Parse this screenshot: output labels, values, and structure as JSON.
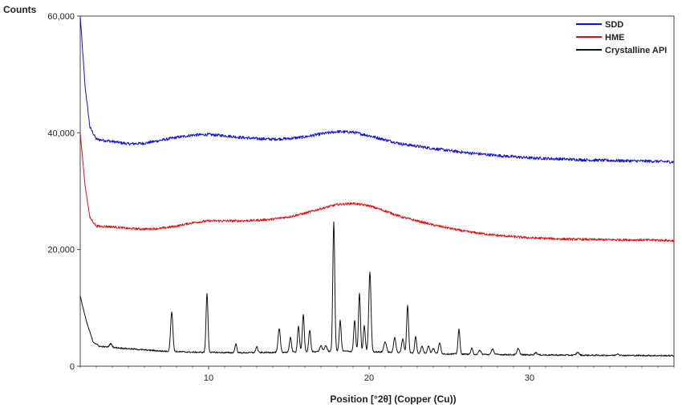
{
  "chart_data": {
    "type": "line",
    "title": "",
    "ylabel": "Counts",
    "xlabel": "Position [°2θ] (Copper (Cu))",
    "xlim": [
      2,
      39
    ],
    "ylim": [
      0,
      60000
    ],
    "x_ticks": [
      10,
      20,
      30
    ],
    "y_ticks": [
      0,
      20000,
      40000,
      60000
    ],
    "y_tick_labels": [
      "0",
      "20,000",
      "40,000",
      "60,000"
    ],
    "grid": false,
    "legend_position": "top-right",
    "series": [
      {
        "name": "SDD",
        "color": "#1010e0",
        "noise": 250,
        "points": [
          [
            2.0,
            60000
          ],
          [
            2.3,
            48000
          ],
          [
            2.6,
            41000
          ],
          [
            3.0,
            38900
          ],
          [
            4.0,
            38500
          ],
          [
            5.0,
            38100
          ],
          [
            6.0,
            38200
          ],
          [
            7.0,
            38700
          ],
          [
            8.0,
            39200
          ],
          [
            9.0,
            39600
          ],
          [
            10.0,
            39700
          ],
          [
            11.0,
            39500
          ],
          [
            12.0,
            39200
          ],
          [
            13.0,
            39000
          ],
          [
            14.0,
            38900
          ],
          [
            15.0,
            39000
          ],
          [
            16.0,
            39300
          ],
          [
            17.0,
            39800
          ],
          [
            18.0,
            40200
          ],
          [
            19.0,
            40100
          ],
          [
            20.0,
            39500
          ],
          [
            21.0,
            38800
          ],
          [
            22.0,
            38100
          ],
          [
            24.0,
            37300
          ],
          [
            26.0,
            36600
          ],
          [
            28.0,
            36100
          ],
          [
            30.0,
            35700
          ],
          [
            32.0,
            35500
          ],
          [
            34.0,
            35300
          ],
          [
            36.0,
            35200
          ],
          [
            38.0,
            35100
          ],
          [
            39.0,
            35000
          ]
        ]
      },
      {
        "name": "HME",
        "color": "#e01010",
        "noise": 200,
        "points": [
          [
            2.0,
            40000
          ],
          [
            2.3,
            31000
          ],
          [
            2.6,
            25500
          ],
          [
            3.0,
            24000
          ],
          [
            4.0,
            23900
          ],
          [
            5.0,
            23600
          ],
          [
            6.0,
            23500
          ],
          [
            7.0,
            23600
          ],
          [
            8.0,
            24000
          ],
          [
            9.0,
            24600
          ],
          [
            10.0,
            24900
          ],
          [
            11.0,
            24900
          ],
          [
            12.0,
            24900
          ],
          [
            13.0,
            25000
          ],
          [
            14.0,
            25200
          ],
          [
            15.0,
            25600
          ],
          [
            16.0,
            26200
          ],
          [
            17.0,
            27000
          ],
          [
            18.0,
            27700
          ],
          [
            19.0,
            27900
          ],
          [
            20.0,
            27500
          ],
          [
            21.0,
            26600
          ],
          [
            22.0,
            25600
          ],
          [
            24.0,
            24200
          ],
          [
            26.0,
            23100
          ],
          [
            28.0,
            22400
          ],
          [
            30.0,
            22000
          ],
          [
            32.0,
            21800
          ],
          [
            34.0,
            21700
          ],
          [
            36.0,
            21650
          ],
          [
            38.0,
            21600
          ],
          [
            39.0,
            21500
          ]
        ]
      },
      {
        "name": "Crystalline API",
        "color": "#111111",
        "noise": 120,
        "baseline": [
          [
            2.0,
            12000
          ],
          [
            2.4,
            7500
          ],
          [
            2.8,
            4200
          ],
          [
            3.2,
            3400
          ],
          [
            5.0,
            3000
          ],
          [
            7.0,
            2600
          ],
          [
            9.0,
            2400
          ],
          [
            12.0,
            2300
          ],
          [
            15.0,
            2400
          ],
          [
            18.0,
            2600
          ],
          [
            20.0,
            2500
          ],
          [
            22.0,
            2300
          ],
          [
            25.0,
            2100
          ],
          [
            28.0,
            2000
          ],
          [
            32.0,
            1900
          ],
          [
            36.0,
            1850
          ],
          [
            39.0,
            1800
          ]
        ],
        "peaks": [
          [
            3.9,
            600,
            0.08
          ],
          [
            7.7,
            6800,
            0.07
          ],
          [
            9.9,
            10100,
            0.06
          ],
          [
            11.7,
            1500,
            0.06
          ],
          [
            13.0,
            1000,
            0.06
          ],
          [
            14.4,
            4000,
            0.07
          ],
          [
            15.1,
            2600,
            0.06
          ],
          [
            15.6,
            4400,
            0.06
          ],
          [
            15.9,
            6400,
            0.06
          ],
          [
            16.3,
            3700,
            0.06
          ],
          [
            17.0,
            1000,
            0.07
          ],
          [
            17.3,
            1000,
            0.07
          ],
          [
            17.8,
            22200,
            0.06
          ],
          [
            18.2,
            5200,
            0.06
          ],
          [
            19.1,
            5300,
            0.06
          ],
          [
            19.4,
            9900,
            0.06
          ],
          [
            19.7,
            4400,
            0.06
          ],
          [
            20.05,
            13600,
            0.07
          ],
          [
            21.0,
            1800,
            0.08
          ],
          [
            21.6,
            2600,
            0.07
          ],
          [
            22.1,
            2400,
            0.07
          ],
          [
            22.4,
            8200,
            0.06
          ],
          [
            22.9,
            2800,
            0.06
          ],
          [
            23.3,
            1200,
            0.07
          ],
          [
            23.7,
            1300,
            0.07
          ],
          [
            24.0,
            900,
            0.07
          ],
          [
            24.4,
            1800,
            0.07
          ],
          [
            25.6,
            4200,
            0.06
          ],
          [
            26.4,
            1000,
            0.06
          ],
          [
            26.9,
            700,
            0.07
          ],
          [
            27.7,
            1000,
            0.07
          ],
          [
            29.3,
            1100,
            0.07
          ],
          [
            30.4,
            400,
            0.08
          ],
          [
            33.0,
            500,
            0.08
          ],
          [
            35.5,
            300,
            0.08
          ]
        ]
      }
    ]
  }
}
